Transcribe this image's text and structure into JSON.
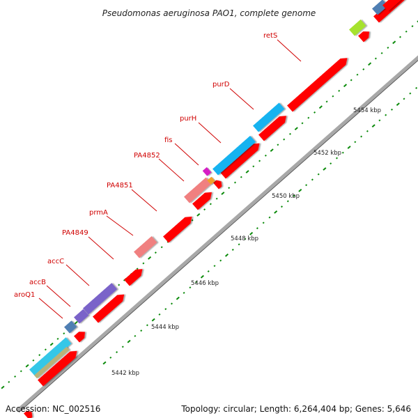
{
  "title": "Pseudomonas aeruginosa PAO1, complete genome",
  "accession_text": "Accession: NC_002516",
  "summary_text": "Topology: circular; Length: 6,264,404 bp; Genes: 5,646",
  "colors": {
    "backbone": "#a8a8a8",
    "cds": "#ff0000",
    "label": "#d00000",
    "tick": "#0a8a0a"
  },
  "kbp_labels": [
    "5442 kbp",
    "5444 kbp",
    "5446 kbp",
    "5448 kbp",
    "5450 kbp",
    "5452 kbp",
    "5454 kbp"
  ],
  "gene_labels": [
    "aroQ1",
    "accB",
    "accC",
    "PA4849",
    "prmA",
    "PA4851",
    "PA4852",
    "fis",
    "purH",
    "purD",
    "retS"
  ]
}
